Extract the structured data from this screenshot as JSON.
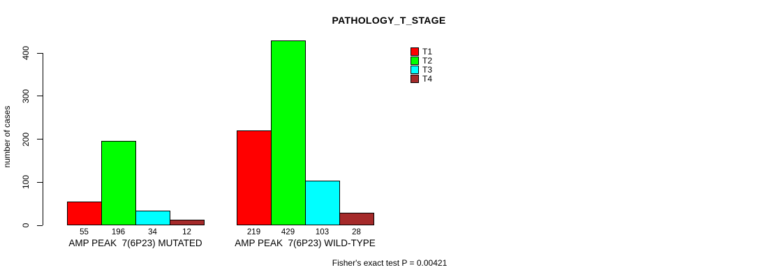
{
  "chart_data": {
    "type": "bar",
    "title": "PATHOLOGY_T_STAGE",
    "ylabel": "number of cases",
    "xlabel": "",
    "ylim": [
      0,
      440
    ],
    "yticks": [
      0,
      100,
      200,
      300,
      400
    ],
    "grid": false,
    "legend_position": "top-right",
    "categories": [
      "AMP PEAK  7(6P23) MUTATED",
      "AMP PEAK  7(6P23) WILD-TYPE"
    ],
    "series": [
      {
        "name": "T1",
        "color": "#ff0000",
        "values": [
          55,
          219
        ]
      },
      {
        "name": "T2",
        "color": "#00ff00",
        "values": [
          196,
          429
        ]
      },
      {
        "name": "T3",
        "color": "#00ffff",
        "values": [
          34,
          103
        ]
      },
      {
        "name": "T4",
        "color": "#a52a2a",
        "values": [
          12,
          28
        ]
      }
    ],
    "bar_value_labels": [
      [
        55,
        196,
        34,
        12
      ],
      [
        219,
        429,
        103,
        28
      ]
    ],
    "annotation": "Fisher's exact test P = 0.00421",
    "axis_color": "#000000",
    "bar_border_color": "#000000"
  }
}
